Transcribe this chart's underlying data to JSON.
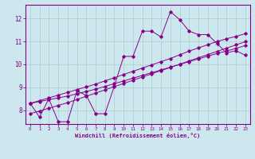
{
  "xlabel": "Windchill (Refroidissement éolien,°C)",
  "background_color": "#cce8ee",
  "line_color": "#880088",
  "grid_color": "#aacccc",
  "x_data": [
    0,
    1,
    2,
    3,
    4,
    5,
    6,
    7,
    8,
    9,
    10,
    11,
    12,
    13,
    14,
    15,
    16,
    17,
    18,
    19,
    20,
    21,
    22,
    23
  ],
  "y_zigzag": [
    8.3,
    7.7,
    8.5,
    7.5,
    7.5,
    8.85,
    8.65,
    7.85,
    7.85,
    9.05,
    10.35,
    10.35,
    11.45,
    11.45,
    11.2,
    12.3,
    11.95,
    11.45,
    11.3,
    11.3,
    10.9,
    10.5,
    10.6,
    10.4
  ],
  "y_line1_x": [
    0,
    1,
    2,
    3,
    4,
    5,
    6,
    7,
    8,
    9,
    10,
    11,
    12,
    13,
    14,
    15,
    16,
    17,
    18,
    19,
    20,
    21,
    22,
    23
  ],
  "y_line1": [
    8.3,
    8.38,
    8.46,
    8.54,
    8.62,
    8.72,
    8.82,
    8.92,
    9.04,
    9.16,
    9.28,
    9.4,
    9.52,
    9.64,
    9.76,
    9.88,
    10.0,
    10.12,
    10.24,
    10.36,
    10.48,
    10.58,
    10.7,
    10.82
  ],
  "y_line2_x": [
    0,
    1,
    2,
    3,
    4,
    5,
    6,
    7,
    8,
    9,
    10,
    11,
    12,
    13,
    14,
    15,
    16,
    17,
    18,
    19,
    20,
    21,
    22,
    23
  ],
  "y_line2": [
    8.3,
    8.42,
    8.54,
    8.66,
    8.78,
    8.9,
    9.02,
    9.14,
    9.28,
    9.42,
    9.56,
    9.7,
    9.84,
    9.98,
    10.12,
    10.26,
    10.42,
    10.58,
    10.72,
    10.86,
    11.0,
    11.12,
    11.22,
    11.34
  ],
  "y_line3_x": [
    0,
    1,
    2,
    3,
    4,
    5,
    6,
    7,
    8,
    9,
    10,
    11,
    12,
    13,
    14,
    15,
    16,
    17,
    18,
    19,
    20,
    21,
    22,
    23
  ],
  "y_line3": [
    7.85,
    7.97,
    8.09,
    8.21,
    8.33,
    8.47,
    8.61,
    8.75,
    8.89,
    9.03,
    9.17,
    9.31,
    9.45,
    9.59,
    9.73,
    9.87,
    10.01,
    10.15,
    10.29,
    10.43,
    10.57,
    10.71,
    10.85,
    10.99
  ],
  "ylim": [
    7.4,
    12.6
  ],
  "yticks": [
    8,
    9,
    10,
    11,
    12
  ],
  "xlim": [
    -0.5,
    23.5
  ],
  "xticks": [
    0,
    1,
    2,
    3,
    4,
    5,
    6,
    7,
    8,
    9,
    10,
    11,
    12,
    13,
    14,
    15,
    16,
    17,
    18,
    19,
    20,
    21,
    22,
    23
  ]
}
